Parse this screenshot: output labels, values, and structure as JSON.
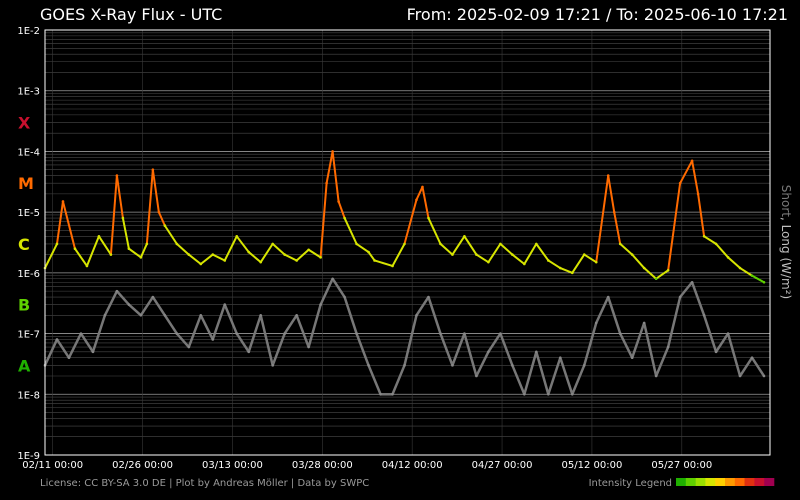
{
  "chart_data": {
    "type": "line",
    "title": "GOES X-Ray Flux - UTC",
    "range_label": "From: 2025-02-09 17:21  /  To: 2025-06-10 17:21",
    "ylabel_part1": "Short",
    "ylabel_sep": ", ",
    "ylabel_part2": "Long (W/m²)",
    "y_scale": "log",
    "ylim": [
      1e-09,
      0.01
    ],
    "x_range": [
      "2025-02-09 17:21",
      "2025-06-10 17:21"
    ],
    "y_tick_labels": [
      "1E-2",
      "1E-3",
      "1E-4",
      "1E-5",
      "1E-6",
      "1E-7",
      "1E-8",
      "1E-9"
    ],
    "flare_classes": [
      {
        "label": "X",
        "color": "#c8102e",
        "at": 0.0003
      },
      {
        "label": "M",
        "color": "#ff6a00",
        "at": 3e-05
      },
      {
        "label": "C",
        "color": "#d7e500",
        "at": 3e-06
      },
      {
        "label": "B",
        "color": "#5fd000",
        "at": 3e-07
      },
      {
        "label": "A",
        "color": "#1fb000",
        "at": 3e-08
      }
    ],
    "x_tick_labels": [
      "02/11 00:00",
      "02/26 00:00",
      "03/13 00:00",
      "03/28 00:00",
      "04/12 00:00",
      "04/27 00:00",
      "05/12 00:00",
      "05/27 00:00"
    ],
    "x_tick_days": [
      1.28,
      16.28,
      31.28,
      46.28,
      61.28,
      76.28,
      91.28,
      106.28
    ],
    "total_days": 121,
    "series": [
      {
        "name": "Long",
        "color_note": "colored by intensity (yellow C-level, orange M-level, green B-level)",
        "points": [
          [
            0,
            1.2e-06
          ],
          [
            2,
            3e-06
          ],
          [
            3,
            1.5e-05
          ],
          [
            5,
            2.5e-06
          ],
          [
            7,
            1.3e-06
          ],
          [
            9,
            4e-06
          ],
          [
            11,
            2e-06
          ],
          [
            12,
            4e-05
          ],
          [
            13,
            8e-06
          ],
          [
            14,
            2.5e-06
          ],
          [
            16,
            1.8e-06
          ],
          [
            17,
            3e-06
          ],
          [
            18,
            5e-05
          ],
          [
            19,
            1e-05
          ],
          [
            20,
            6e-06
          ],
          [
            22,
            3e-06
          ],
          [
            24,
            2e-06
          ],
          [
            26,
            1.4e-06
          ],
          [
            28,
            2e-06
          ],
          [
            30,
            1.6e-06
          ],
          [
            32,
            4e-06
          ],
          [
            34,
            2.2e-06
          ],
          [
            36,
            1.5e-06
          ],
          [
            38,
            3e-06
          ],
          [
            40,
            2e-06
          ],
          [
            42,
            1.6e-06
          ],
          [
            44,
            2.4e-06
          ],
          [
            46,
            1.8e-06
          ],
          [
            47,
            3e-05
          ],
          [
            48,
            0.0001
          ],
          [
            49,
            1.5e-05
          ],
          [
            50,
            8e-06
          ],
          [
            52,
            3e-06
          ],
          [
            54,
            2.2e-06
          ],
          [
            55,
            1.6e-06
          ],
          [
            58,
            1.3e-06
          ],
          [
            60,
            3e-06
          ],
          [
            62,
            1.6e-05
          ],
          [
            63,
            2.6e-05
          ],
          [
            64,
            8e-06
          ],
          [
            66,
            3e-06
          ],
          [
            68,
            2e-06
          ],
          [
            70,
            4e-06
          ],
          [
            72,
            2e-06
          ],
          [
            74,
            1.5e-06
          ],
          [
            76,
            3e-06
          ],
          [
            78,
            2e-06
          ],
          [
            80,
            1.4e-06
          ],
          [
            82,
            3e-06
          ],
          [
            84,
            1.6e-06
          ],
          [
            86,
            1.2e-06
          ],
          [
            88,
            1e-06
          ],
          [
            90,
            2e-06
          ],
          [
            92,
            1.5e-06
          ],
          [
            94,
            4e-05
          ],
          [
            95,
            1e-05
          ],
          [
            96,
            3e-06
          ],
          [
            98,
            2e-06
          ],
          [
            100,
            1.2e-06
          ],
          [
            102,
            8e-07
          ],
          [
            104,
            1.1e-06
          ],
          [
            106,
            3e-05
          ],
          [
            108,
            7e-05
          ],
          [
            109,
            2e-05
          ],
          [
            110,
            4e-06
          ],
          [
            112,
            3e-06
          ],
          [
            114,
            1.8e-06
          ],
          [
            116,
            1.2e-06
          ],
          [
            118,
            9e-07
          ],
          [
            120,
            7e-07
          ]
        ]
      },
      {
        "name": "Short",
        "color_note": "gray",
        "points": [
          [
            0,
            3e-08
          ],
          [
            2,
            8e-08
          ],
          [
            4,
            4e-08
          ],
          [
            6,
            1e-07
          ],
          [
            8,
            5e-08
          ],
          [
            10,
            2e-07
          ],
          [
            12,
            5e-07
          ],
          [
            14,
            3e-07
          ],
          [
            16,
            2e-07
          ],
          [
            18,
            4e-07
          ],
          [
            20,
            2e-07
          ],
          [
            22,
            1e-07
          ],
          [
            24,
            6e-08
          ],
          [
            26,
            2e-07
          ],
          [
            28,
            8e-08
          ],
          [
            30,
            3e-07
          ],
          [
            32,
            1e-07
          ],
          [
            34,
            5e-08
          ],
          [
            36,
            2e-07
          ],
          [
            38,
            3e-08
          ],
          [
            40,
            1e-07
          ],
          [
            42,
            2e-07
          ],
          [
            44,
            6e-08
          ],
          [
            46,
            3e-07
          ],
          [
            48,
            8e-07
          ],
          [
            50,
            4e-07
          ],
          [
            52,
            1e-07
          ],
          [
            54,
            3e-08
          ],
          [
            56,
            1e-08
          ],
          [
            58,
            1e-08
          ],
          [
            60,
            3e-08
          ],
          [
            62,
            2e-07
          ],
          [
            64,
            4e-07
          ],
          [
            66,
            1e-07
          ],
          [
            68,
            3e-08
          ],
          [
            70,
            1e-07
          ],
          [
            72,
            2e-08
          ],
          [
            74,
            5e-08
          ],
          [
            76,
            1e-07
          ],
          [
            78,
            3e-08
          ],
          [
            80,
            1e-08
          ],
          [
            82,
            5e-08
          ],
          [
            84,
            1e-08
          ],
          [
            86,
            4e-08
          ],
          [
            88,
            1e-08
          ],
          [
            90,
            3e-08
          ],
          [
            92,
            1.5e-07
          ],
          [
            94,
            4e-07
          ],
          [
            96,
            1e-07
          ],
          [
            98,
            4e-08
          ],
          [
            100,
            1.5e-07
          ],
          [
            102,
            2e-08
          ],
          [
            104,
            6e-08
          ],
          [
            106,
            4e-07
          ],
          [
            108,
            7e-07
          ],
          [
            110,
            2e-07
          ],
          [
            112,
            5e-08
          ],
          [
            114,
            1e-07
          ],
          [
            116,
            2e-08
          ],
          [
            118,
            4e-08
          ],
          [
            120,
            2e-08
          ]
        ]
      }
    ],
    "grid": true
  },
  "footer": {
    "license": "License: CC BY-SA 3.0 DE | Plot by Andreas Möller | Data by SWPC",
    "legend_label": "Intensity Legend"
  },
  "intensity_legend_colors": [
    "#1fb000",
    "#5fd000",
    "#9be000",
    "#d7e500",
    "#ffd000",
    "#ff9a00",
    "#ff6a00",
    "#e03010",
    "#c8102e",
    "#a00050"
  ]
}
